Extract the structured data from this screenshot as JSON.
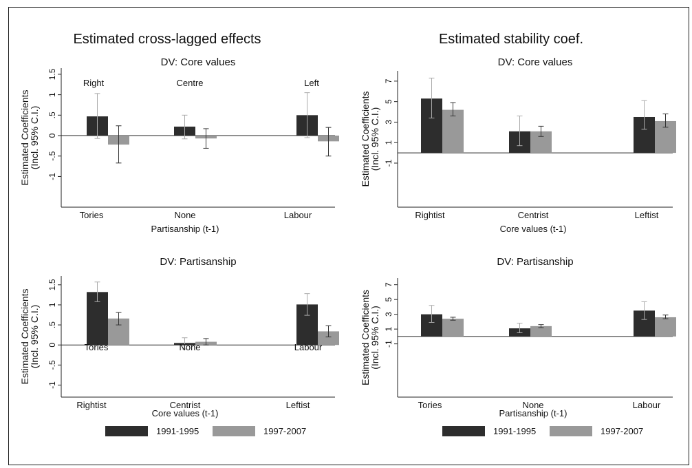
{
  "titles": {
    "left": "Estimated cross-lagged effects",
    "right": "Estimated stability coef."
  },
  "legend": [
    {
      "label": "1991-1995",
      "color": "#2d2d2d"
    },
    {
      "label": "1997-2007",
      "color": "#999999"
    }
  ],
  "colors": {
    "series_a": "#2d2d2d",
    "series_b": "#999999",
    "error_bar": "#333333",
    "error_bar_light": "#aaaaaa"
  },
  "chart_data": [
    {
      "type": "bar",
      "title": "DV: Core values",
      "ylabel": "Estimated Coefficients",
      "ylabel2": "(Incl. 95% C.I.)",
      "xlabel": "Partisanship (t-1)",
      "categories": [
        "Tories",
        "None",
        "Labour"
      ],
      "annotations": [
        "Right",
        "Centre",
        "Left"
      ],
      "yticks": [
        1.5,
        1,
        0.5,
        0,
        -0.5,
        -1
      ],
      "ytick_labels": [
        "1.5",
        "1",
        ".5",
        "0",
        "-.5",
        "-1"
      ],
      "ylim": [
        -1.75,
        1.65
      ],
      "series": [
        {
          "name": "1991-1995",
          "values": [
            0.47,
            0.22,
            0.5
          ],
          "ci_low": [
            -0.07,
            -0.08,
            -0.05
          ],
          "ci_high": [
            1.03,
            0.5,
            1.05
          ]
        },
        {
          "name": "1997-2007",
          "values": [
            -0.22,
            -0.07,
            -0.14
          ],
          "ci_low": [
            -0.67,
            -0.31,
            -0.5
          ],
          "ci_high": [
            0.24,
            0.17,
            0.2
          ]
        }
      ],
      "grid": false
    },
    {
      "type": "bar",
      "title": "DV: Core values",
      "ylabel": "Estimated Coefficients",
      "ylabel2": "(Incl. 95% C.I.)",
      "xlabel": "Core values (t-1)",
      "categories": [
        "Rightist",
        "Centrist",
        "Leftist"
      ],
      "annotations": [],
      "yticks": [
        7,
        5,
        3,
        1,
        -1
      ],
      "ytick_labels": [
        "7",
        "5",
        "3",
        "1",
        "-1"
      ],
      "ylim": [
        -5.3,
        8
      ],
      "series": [
        {
          "name": "1991-1995",
          "values": [
            5.3,
            2.1,
            3.5
          ],
          "ci_low": [
            3.4,
            0.7,
            2.3
          ],
          "ci_high": [
            7.3,
            3.6,
            5.1
          ]
        },
        {
          "name": "1997-2007",
          "values": [
            4.2,
            2.1,
            3.1
          ],
          "ci_low": [
            3.6,
            1.6,
            2.5
          ],
          "ci_high": [
            4.9,
            2.6,
            3.8
          ]
        }
      ],
      "grid": false
    },
    {
      "type": "bar",
      "title": "DV: Partisanship",
      "ylabel": "Estimated Coefficients",
      "ylabel2": "(Incl. 95% C.I.)",
      "xlabel": "Core values (t-1)",
      "categories": [
        "Rightist",
        "Centrist",
        "Leftist"
      ],
      "annotations": [
        "Tories",
        "None",
        "Labour"
      ],
      "yticks": [
        1.5,
        1,
        0.5,
        0,
        -0.5,
        -1
      ],
      "ytick_labels": [
        "1.5",
        "1",
        ".5",
        "0",
        "-.5",
        "-1"
      ],
      "ylim": [
        -1.3,
        1.72
      ],
      "series": [
        {
          "name": "1991-1995",
          "values": [
            1.32,
            0.05,
            1.01
          ],
          "ci_low": [
            1.08,
            -0.1,
            0.74
          ],
          "ci_high": [
            1.57,
            0.18,
            1.28
          ]
        },
        {
          "name": "1997-2007",
          "values": [
            0.66,
            0.08,
            0.34
          ],
          "ci_low": [
            0.5,
            0.0,
            0.2
          ],
          "ci_high": [
            0.81,
            0.16,
            0.48
          ]
        }
      ],
      "grid": false
    },
    {
      "type": "bar",
      "title": "DV: Partisanship",
      "ylabel": "Estimated Coefficients",
      "ylabel2": "(Incl. 95% C.I.)",
      "xlabel": "Partisanship (t-1)",
      "categories": [
        "Tories",
        "None",
        "Labour"
      ],
      "annotations": [],
      "yticks": [
        7,
        5,
        3,
        1,
        -1
      ],
      "ytick_labels": [
        "7",
        "5",
        "3",
        "1",
        "-1"
      ],
      "ylim": [
        -8.2,
        7.9
      ],
      "series": [
        {
          "name": "1991-1995",
          "values": [
            3.0,
            1.1,
            3.5
          ],
          "ci_low": [
            1.9,
            0.5,
            2.3
          ],
          "ci_high": [
            4.2,
            1.8,
            4.7
          ]
        },
        {
          "name": "1997-2007",
          "values": [
            2.4,
            1.4,
            2.6
          ],
          "ci_low": [
            2.2,
            1.2,
            2.4
          ],
          "ci_high": [
            2.6,
            1.6,
            2.9
          ]
        }
      ],
      "grid": false
    }
  ]
}
